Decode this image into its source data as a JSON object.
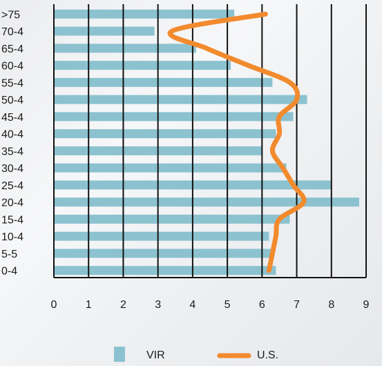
{
  "chart_data": {
    "type": "bar",
    "orientation": "horizontal",
    "categories": [
      ">75",
      "70-4",
      "65-4",
      "60-4",
      "55-4",
      "50-4",
      "45-4",
      "40-4",
      "35-4",
      "30-4",
      "25-4",
      "20-4",
      "15-4",
      "10-4",
      "5-5",
      "0-4"
    ],
    "series": [
      {
        "name": "VIR",
        "kind": "bar",
        "color": "#8cc2d0",
        "values": [
          5.2,
          2.9,
          4.1,
          5.1,
          6.3,
          7.3,
          6.9,
          6.4,
          6.0,
          6.7,
          8.0,
          8.8,
          6.8,
          6.2,
          6.3,
          6.4
        ]
      },
      {
        "name": "U.S.",
        "kind": "line",
        "color": "#f28a2e",
        "values": [
          6.1,
          3.4,
          4.4,
          5.6,
          6.8,
          7.0,
          6.5,
          6.5,
          6.3,
          6.6,
          6.9,
          7.2,
          6.5,
          6.4,
          6.3,
          6.2
        ]
      }
    ],
    "xlim": [
      0,
      9
    ],
    "xticks": [
      "0",
      "1",
      "2",
      "3",
      "4",
      "5",
      "6",
      "7",
      "8",
      "9"
    ],
    "grid": true,
    "legend": "bottom"
  }
}
